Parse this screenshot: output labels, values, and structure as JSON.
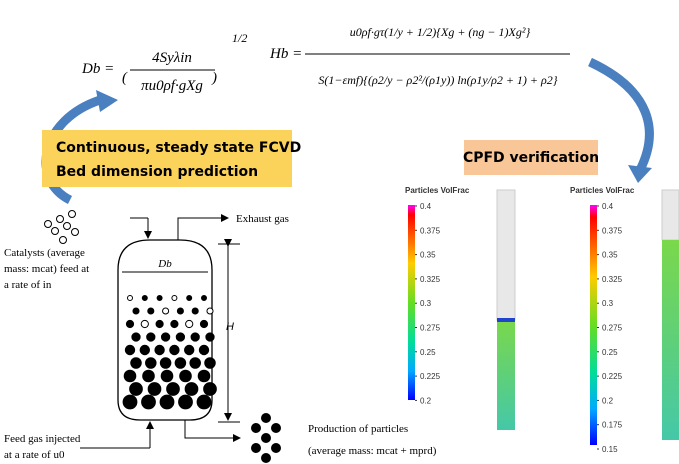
{
  "equations": {
    "db": {
      "lhs": "Db =",
      "numerator": "4Syλin",
      "denominator": "πu0ρf·gXg",
      "exponent": "1/2"
    },
    "hb": {
      "lhs": "Hb =",
      "numerator": "u0ρf·gτ(1/y + 1/2){Xg + (ng − 1)Xg²}",
      "denominator": "S(1−εmf){(ρ2/y − ρ2²/(ρ1y)) ln(ρ1y/ρ2 + 1) + ρ2}"
    }
  },
  "boxes": {
    "prediction": [
      "Continuous, steady state FCVD",
      "Bed dimension prediction"
    ],
    "verification": "CPFD verification"
  },
  "vessel": {
    "exhaust": "Exhaust gas",
    "diameter": "Db",
    "height": "H",
    "catalysts": [
      "Catalysts  (average",
      "mass:  mcat)  feed  at",
      "a rate of  in"
    ],
    "feed": [
      "Feed gas injected",
      "at a rate of u0"
    ],
    "production": [
      "Production of particles",
      "(average mass: mcat + mprd)"
    ]
  },
  "colorbars": [
    {
      "title": "Particles VolFrac",
      "ticks": [
        "0.4",
        "0.375",
        "0.35",
        "0.325",
        "0.3",
        "0.275",
        "0.25",
        "0.225",
        "0.2"
      ]
    },
    {
      "title": "Particles VolFrac",
      "ticks": [
        "0.4",
        "0.375",
        "0.35",
        "0.325",
        "0.3",
        "0.275",
        "0.25",
        "0.225",
        "0.2",
        "0.175",
        "0.15"
      ]
    }
  ]
}
